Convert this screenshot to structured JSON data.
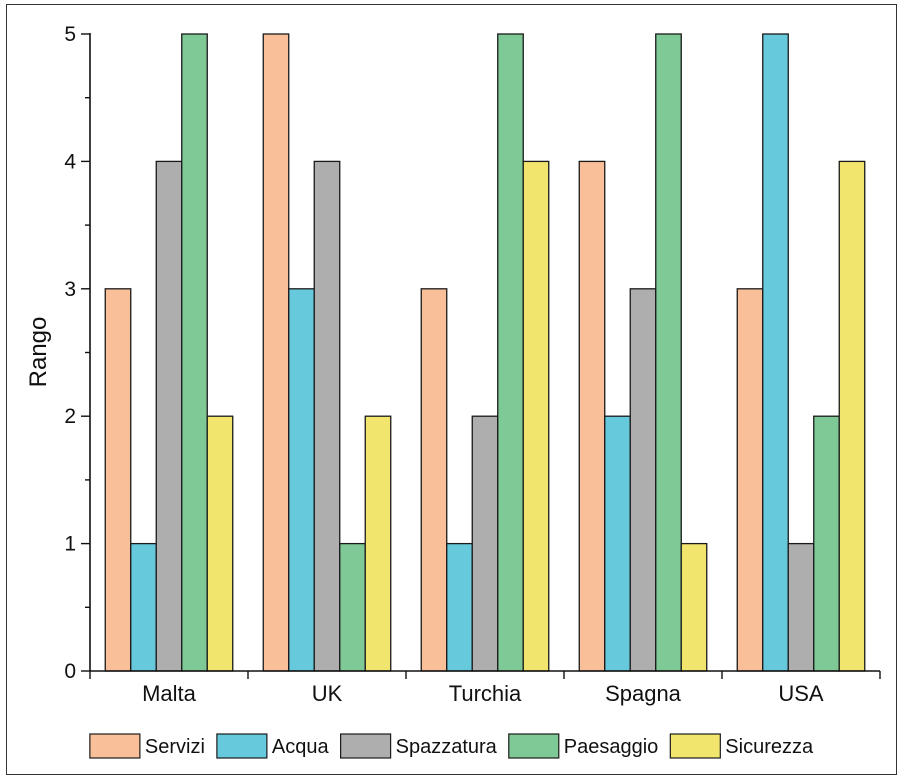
{
  "chart_data": {
    "type": "bar",
    "title": "",
    "xlabel": "",
    "ylabel": "Rango",
    "ylim": [
      0,
      5
    ],
    "yticks": [
      "0",
      "1",
      "2",
      "3",
      "4",
      "5"
    ],
    "categories": [
      "Malta",
      "UK",
      "Turchia",
      "Spagna",
      "USA"
    ],
    "series": [
      {
        "name": "Servizi",
        "color": "#f9bf99",
        "values": [
          3,
          5,
          3,
          4,
          3
        ]
      },
      {
        "name": "Acqua",
        "color": "#66c9dc",
        "values": [
          1,
          3,
          1,
          2,
          5
        ]
      },
      {
        "name": "Spazzatura",
        "color": "#aeaeae",
        "values": [
          4,
          4,
          2,
          3,
          1
        ]
      },
      {
        "name": "Paesaggio",
        "color": "#7fc996",
        "values": [
          5,
          1,
          5,
          5,
          2
        ]
      },
      {
        "name": "Sicurezza",
        "color": "#f1e56e",
        "values": [
          2,
          2,
          4,
          1,
          4
        ]
      }
    ],
    "grid": false,
    "legend_position": "bottom"
  }
}
